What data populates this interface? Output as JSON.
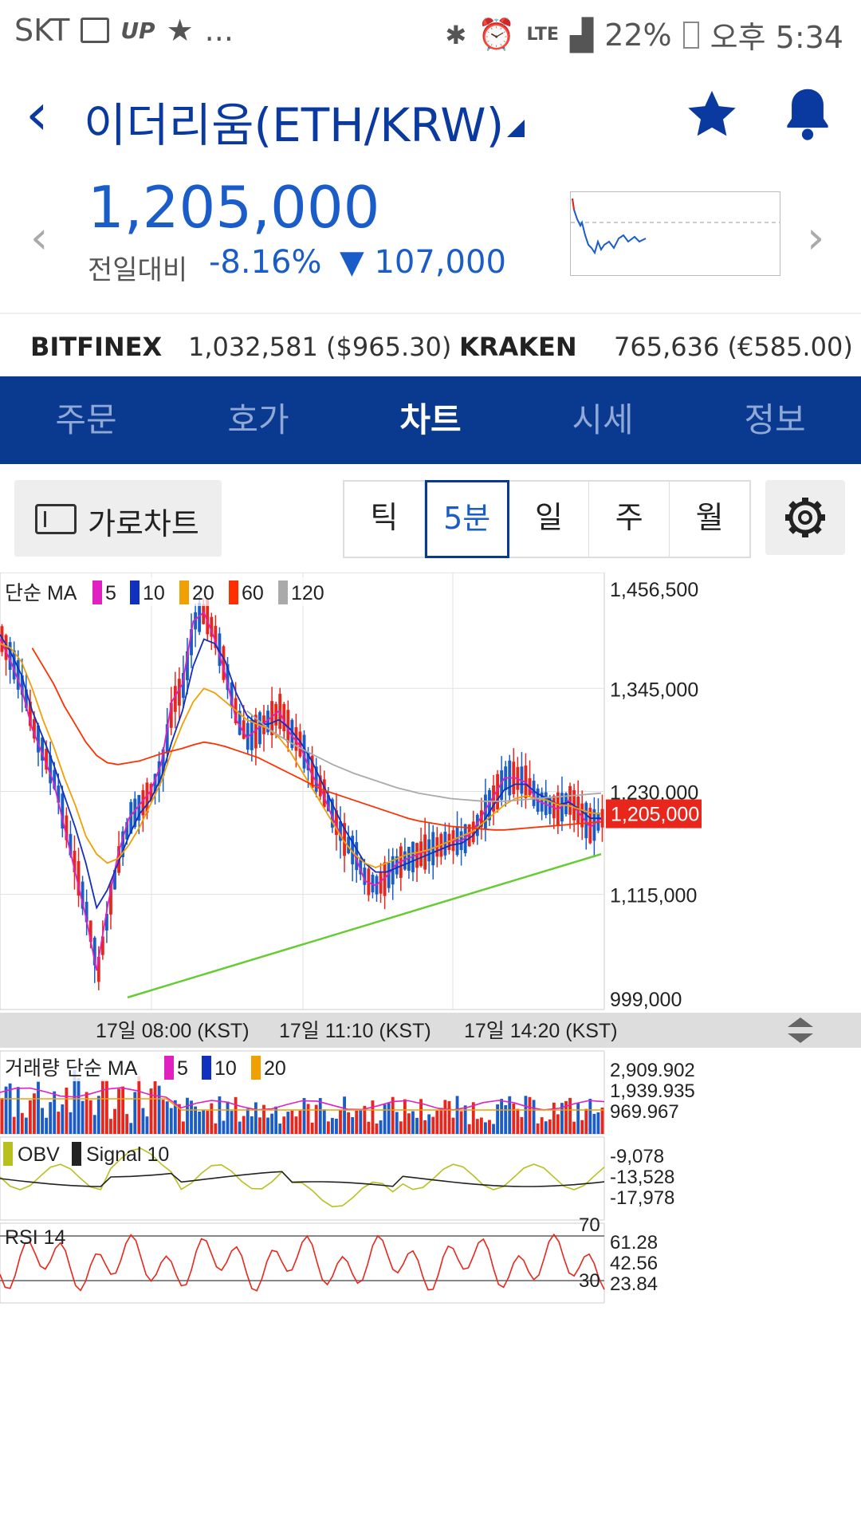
{
  "status_bar": {
    "carrier": "SKT",
    "extra": "...",
    "network": "LTE",
    "battery": "22%",
    "time": "오후 5:34"
  },
  "header": {
    "back_icon": "chevron-left-icon",
    "title": "이더리움(ETH/KRW)",
    "favorite_icon": "star-icon",
    "alert_icon": "bell-icon"
  },
  "price": {
    "current": "1,205,000",
    "change_label": "전일대비",
    "change_pct": "-8.16%",
    "change_abs": "107,000",
    "accent": "#1a5dc9"
  },
  "exchanges": [
    {
      "name": "BITFINEX",
      "value": "1,032,581 ($965.30)"
    },
    {
      "name": "KRAKEN",
      "value": "765,636 (€585.00)"
    }
  ],
  "tabs": [
    {
      "label": "주문",
      "active": false
    },
    {
      "label": "호가",
      "active": false
    },
    {
      "label": "차트",
      "active": true
    },
    {
      "label": "시세",
      "active": false
    },
    {
      "label": "정보",
      "active": false
    }
  ],
  "controls": {
    "horizontal_chart": "가로차트",
    "intervals": [
      "틱",
      "5분",
      "일",
      "주",
      "월"
    ],
    "selected_interval": "5분",
    "settings_icon": "gear-icon"
  },
  "chart_data": {
    "type": "candlestick",
    "legend": {
      "label": "단순 MA",
      "periods": [
        "5",
        "10",
        "20",
        "60",
        "120"
      ],
      "colors": [
        "#e020c0",
        "#1030c0",
        "#f0a000",
        "#ff3000",
        "#aaaaaa"
      ]
    },
    "y_ticks": [
      "1,456,500",
      "1,345,000",
      "1,230,000",
      "1,115,000",
      "999,000"
    ],
    "y_range": [
      999000,
      1456500
    ],
    "current_price_label": "1,205,000",
    "x_labels": [
      "17일 08:00 (KST)",
      "17일 11:10 (KST)",
      "17일 14:20 (KST)"
    ],
    "up_color": "#e8261c",
    "down_color": "#1a5dc9",
    "trendline": {
      "from": 1000000,
      "to": 1160000,
      "color": "#66cc33"
    },
    "ma_series": {
      "ma5": [
        1400000,
        1375000,
        1345000,
        1300000,
        1270000,
        1240000,
        1190000,
        1140000,
        1090000,
        1030000,
        1100000,
        1160000,
        1200000,
        1215000,
        1230000,
        1260000,
        1330000,
        1350000,
        1420000,
        1430000,
        1400000,
        1360000,
        1310000,
        1290000,
        1300000,
        1310000,
        1320000,
        1295000,
        1280000,
        1250000,
        1230000,
        1200000,
        1175000,
        1160000,
        1130000,
        1125000,
        1135000,
        1150000,
        1155000,
        1160000,
        1165000,
        1170000,
        1175000,
        1175000,
        1185000,
        1205000,
        1225000,
        1245000,
        1245000,
        1240000,
        1220000,
        1215000,
        1210000,
        1220000,
        1205000,
        1190000,
        1200000
      ],
      "ma10": [
        1405000,
        1385000,
        1360000,
        1320000,
        1290000,
        1260000,
        1225000,
        1190000,
        1150000,
        1100000,
        1120000,
        1150000,
        1180000,
        1205000,
        1220000,
        1245000,
        1285000,
        1320000,
        1370000,
        1400000,
        1395000,
        1375000,
        1340000,
        1315000,
        1305000,
        1305000,
        1310000,
        1300000,
        1285000,
        1265000,
        1240000,
        1215000,
        1190000,
        1170000,
        1150000,
        1140000,
        1140000,
        1145000,
        1150000,
        1155000,
        1160000,
        1165000,
        1170000,
        1172000,
        1180000,
        1195000,
        1215000,
        1232000,
        1238000,
        1238000,
        1228000,
        1222000,
        1215000,
        1218000,
        1210000,
        1200000,
        1200000
      ],
      "ma20": [
        1395000,
        1390000,
        1375000,
        1345000,
        1310000,
        1280000,
        1245000,
        1215000,
        1180000,
        1160000,
        1150000,
        1155000,
        1170000,
        1190000,
        1215000,
        1240000,
        1275000,
        1305000,
        1330000,
        1345000,
        1340000,
        1330000,
        1320000,
        1310000,
        1305000,
        1300000,
        1290000,
        1275000,
        1255000,
        1235000,
        1215000,
        1195000,
        1175000,
        1160000,
        1150000,
        1145000,
        1150000,
        1155000,
        1160000,
        1162000,
        1165000,
        1170000,
        1175000,
        1180000,
        1185000,
        1195000,
        1205000,
        1215000,
        1222000,
        1225000,
        1222000,
        1220000,
        1215000,
        1214000,
        1210000,
        1206000,
        1205000
      ],
      "ma60": [
        null,
        null,
        null,
        1390000,
        1370000,
        1350000,
        1325000,
        1305000,
        1285000,
        1270000,
        1262000,
        1260000,
        1262000,
        1264000,
        1268000,
        1272000,
        1275000,
        1278000,
        1282000,
        1285000,
        1283000,
        1280000,
        1276000,
        1272000,
        1268000,
        1262000,
        1256000,
        1250000,
        1244000,
        1238000,
        1232000,
        1228000,
        1224000,
        1220000,
        1216000,
        1212000,
        1208000,
        1204000,
        1200000,
        1197000,
        1195000,
        1193000,
        1191000,
        1190000,
        1189000,
        1188000,
        1187000,
        1187000,
        1188000,
        1189000,
        1190000,
        1191000,
        1192000,
        1193000,
        1194000,
        1195000,
        1196000
      ],
      "ma120": [
        null,
        null,
        null,
        null,
        null,
        null,
        null,
        null,
        null,
        null,
        null,
        null,
        null,
        null,
        null,
        null,
        null,
        null,
        null,
        null,
        null,
        null,
        null,
        1320000,
        1310000,
        1300000,
        1292000,
        1285000,
        1278000,
        1272000,
        1266000,
        1260000,
        1255000,
        1250000,
        1246000,
        1242000,
        1238000,
        1234000,
        1231000,
        1228000,
        1226000,
        1224000,
        1222000,
        1221000,
        1220000,
        1219000,
        1219000,
        1219000,
        1220000,
        1221000,
        1222000,
        1223000,
        1224000,
        1225000,
        1226000,
        1227000,
        1228000
      ]
    },
    "volume": {
      "label": "거래량 단순 MA",
      "periods": [
        "5",
        "10",
        "20"
      ],
      "ticks": [
        "2,909.902",
        "1,939.935",
        "969.967"
      ]
    },
    "obv": {
      "label": "OBV",
      "signal_label": "Signal 10",
      "ticks": [
        "-9,078",
        "-13,528",
        "-17,978"
      ]
    },
    "rsi": {
      "label": "RSI 14",
      "ticks": [
        "61.28",
        "42.56",
        "23.84"
      ],
      "levels": [
        "70",
        "30"
      ]
    }
  }
}
